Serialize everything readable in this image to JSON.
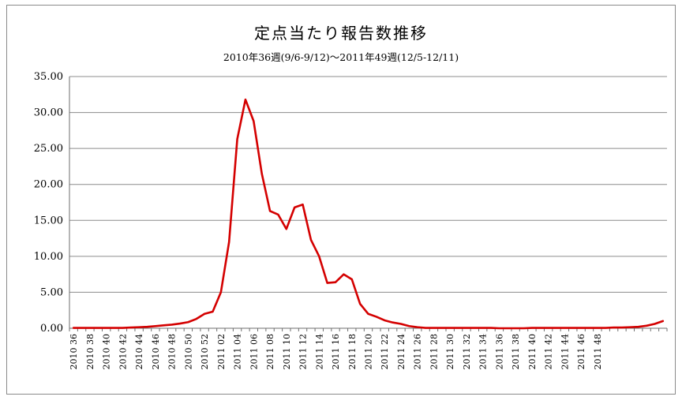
{
  "chart_data": {
    "type": "line",
    "title": "定点当たり報告数推移",
    "subtitle": "2010年36週(9/6-9/12)～2011年49週(12/5-12/11)",
    "xlabel": "",
    "ylabel": "",
    "ylim": [
      0,
      35
    ],
    "yticks": [
      "0.00",
      "5.00",
      "10.00",
      "15.00",
      "20.00",
      "25.00",
      "30.00",
      "35.00"
    ],
    "grid": true,
    "legend": "none",
    "line_color": "#d40000",
    "x_tick_labels": [
      "2010 36",
      "2010 38",
      "2010 40",
      "2010 42",
      "2010 44",
      "2010 46",
      "2010 48",
      "2010 50",
      "2010 52",
      "2011 02",
      "2011 04",
      "2011 06",
      "2011 08",
      "2011 10",
      "2011 12",
      "2011 14",
      "2011 16",
      "2011 18",
      "2011 20",
      "2011 22",
      "2011 24",
      "2011 26",
      "2011 28",
      "2011 30",
      "2011 32",
      "2011 34",
      "2011 36",
      "2011 38",
      "2011 40",
      "2011 42",
      "2011 44",
      "2011 46",
      "2011 48"
    ],
    "series": [
      {
        "name": "",
        "values": [
          0.05,
          0.05,
          0.05,
          0.05,
          0.05,
          0.05,
          0.05,
          0.1,
          0.15,
          0.2,
          0.3,
          0.4,
          0.5,
          0.65,
          0.85,
          1.3,
          2.0,
          2.3,
          5.0,
          12.0,
          26.3,
          31.8,
          28.8,
          21.5,
          16.3,
          15.8,
          13.8,
          16.8,
          17.2,
          12.3,
          10.0,
          6.3,
          6.4,
          7.5,
          6.8,
          3.4,
          2.0,
          1.6,
          1.1,
          0.8,
          0.6,
          0.3,
          0.15,
          0.05,
          0.05,
          0.05,
          0.05,
          0.05,
          0.05,
          0.05,
          0.05,
          0.05,
          0.0,
          0.0,
          0.0,
          0.0,
          0.05,
          0.05,
          0.05,
          0.05,
          0.05,
          0.05,
          0.05,
          0.05,
          0.05,
          0.05,
          0.1,
          0.1,
          0.15,
          0.2,
          0.35,
          0.6,
          1.0
        ]
      }
    ]
  }
}
